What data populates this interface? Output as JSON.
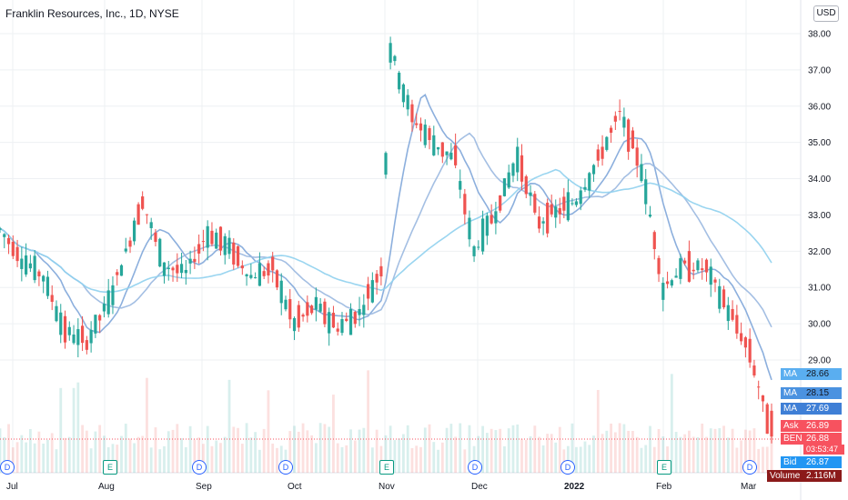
{
  "header": {
    "title": "Franklin Resources, Inc., 1D, NYSE",
    "currency": "USD"
  },
  "colors": {
    "up": "#26a69a",
    "down": "#ef5350",
    "ma_fast": "#7fa6d9",
    "ma_mid": "#9ab8e0",
    "ma_slow": "#8fd0ee",
    "ask": "#f7525f",
    "bid": "#2196f3",
    "volume_tag": "#8b1a1a"
  },
  "chart_data": {
    "type": "candlestick",
    "title": "Franklin Resources, Inc., 1D, NYSE",
    "ylim": [
      28.0,
      38.5
    ],
    "y_ticks": [
      "38.00",
      "37.00",
      "36.00",
      "35.00",
      "34.00",
      "33.00",
      "32.00",
      "31.00",
      "30.00",
      "29.00"
    ],
    "x_labels": [
      "Jul",
      "Aug",
      "Sep",
      "Oct",
      "Nov",
      "Dec",
      "2022",
      "Feb",
      "Mar"
    ],
    "price_series": [
      {
        "date": "2021-07-01",
        "close": 32.6
      },
      {
        "date": "2021-07-08",
        "close": 31.8
      },
      {
        "date": "2021-07-15",
        "close": 31.3
      },
      {
        "date": "2021-07-22",
        "close": 29.8
      },
      {
        "date": "2021-07-29",
        "close": 29.5
      },
      {
        "date": "2021-08-05",
        "close": 30.6
      },
      {
        "date": "2021-08-12",
        "close": 32.3
      },
      {
        "date": "2021-08-16",
        "close": 33.4
      },
      {
        "date": "2021-08-23",
        "close": 31.6
      },
      {
        "date": "2021-08-30",
        "close": 31.4
      },
      {
        "date": "2021-09-06",
        "close": 32.5
      },
      {
        "date": "2021-09-13",
        "close": 32.1
      },
      {
        "date": "2021-09-20",
        "close": 31.3
      },
      {
        "date": "2021-09-27",
        "close": 31.5
      },
      {
        "date": "2021-10-04",
        "close": 30.0
      },
      {
        "date": "2021-10-11",
        "close": 30.5
      },
      {
        "date": "2021-10-18",
        "close": 29.9
      },
      {
        "date": "2021-10-25",
        "close": 30.3
      },
      {
        "date": "2021-11-01",
        "close": 31.5
      },
      {
        "date": "2021-11-04",
        "close": 37.6
      },
      {
        "date": "2021-11-11",
        "close": 35.7
      },
      {
        "date": "2021-11-18",
        "close": 35.0
      },
      {
        "date": "2021-11-25",
        "close": 34.5
      },
      {
        "date": "2021-12-01",
        "close": 32.0
      },
      {
        "date": "2021-12-08",
        "close": 33.1
      },
      {
        "date": "2021-12-15",
        "close": 34.6
      },
      {
        "date": "2021-12-22",
        "close": 32.8
      },
      {
        "date": "2022-01-03",
        "close": 33.4
      },
      {
        "date": "2022-01-10",
        "close": 34.5
      },
      {
        "date": "2022-01-17",
        "close": 35.8
      },
      {
        "date": "2022-01-24",
        "close": 34.3
      },
      {
        "date": "2022-01-31",
        "close": 31.0
      },
      {
        "date": "2022-02-07",
        "close": 31.6
      },
      {
        "date": "2022-02-14",
        "close": 31.5
      },
      {
        "date": "2022-02-21",
        "close": 30.4
      },
      {
        "date": "2022-02-28",
        "close": 29.2
      },
      {
        "date": "2022-03-07",
        "close": 26.89
      }
    ],
    "moving_averages": [
      {
        "label": "MA",
        "value": 28.66
      },
      {
        "label": "MA",
        "value": 28.15
      },
      {
        "label": "MA",
        "value": 27.69
      }
    ],
    "quotes": {
      "ask_label": "Ask",
      "ask": 26.89,
      "symbol": "BEN",
      "last": 26.88,
      "countdown": "03:53:47",
      "bid_label": "Bid",
      "bid": 26.87,
      "volume_label": "Volume",
      "volume": "2.116M"
    },
    "event_markers": [
      {
        "type": "D",
        "label": "D"
      },
      {
        "type": "E",
        "label": "E"
      },
      {
        "type": "D",
        "label": "D"
      },
      {
        "type": "D",
        "label": "D"
      },
      {
        "type": "E",
        "label": "E"
      },
      {
        "type": "D",
        "label": "D"
      },
      {
        "type": "D",
        "label": "D"
      },
      {
        "type": "E",
        "label": "E"
      },
      {
        "type": "D",
        "label": "D"
      }
    ],
    "grid": true
  }
}
